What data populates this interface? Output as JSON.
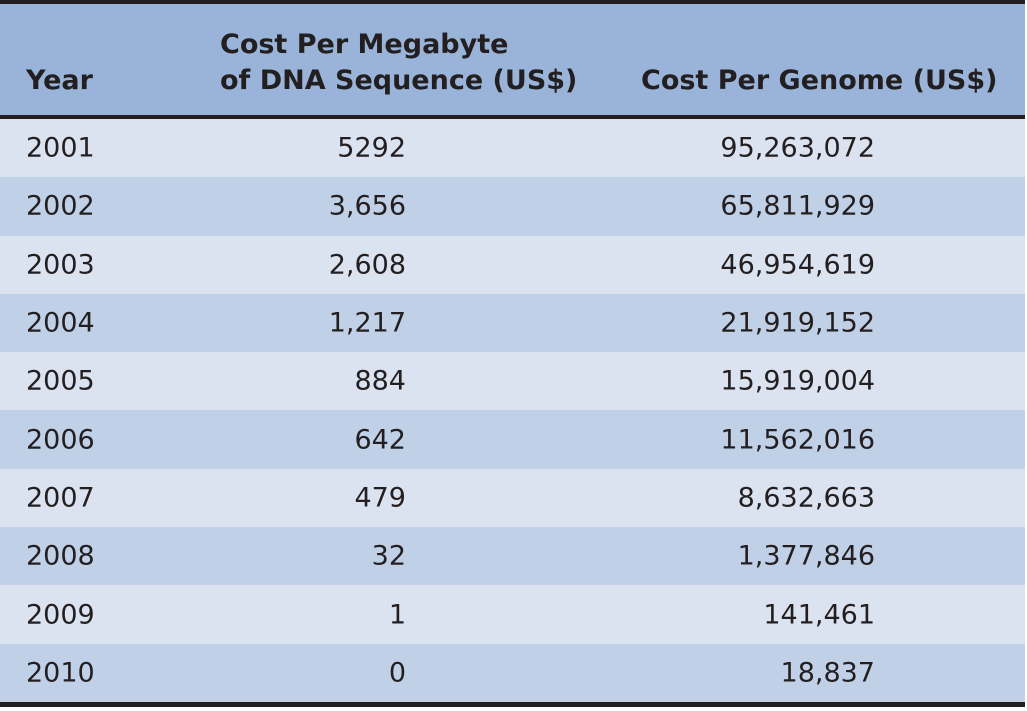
{
  "headers": {
    "year": "Year",
    "cost_mb_line1": "Cost Per Megabyte",
    "cost_mb_line2": "of DNA Sequence (US$)",
    "cost_genome": "Cost Per Genome (US$)"
  },
  "rows": [
    {
      "year": "2001",
      "cost_mb": "5292",
      "cost_genome": "95,263,072"
    },
    {
      "year": "2002",
      "cost_mb": "3,656",
      "cost_genome": "65,811,929"
    },
    {
      "year": "2003",
      "cost_mb": "2,608",
      "cost_genome": "46,954,619"
    },
    {
      "year": "2004",
      "cost_mb": "1,217",
      "cost_genome": "21,919,152"
    },
    {
      "year": "2005",
      "cost_mb": "884",
      "cost_genome": "15,919,004"
    },
    {
      "year": "2006",
      "cost_mb": "642",
      "cost_genome": "11,562,016"
    },
    {
      "year": "2007",
      "cost_mb": "479",
      "cost_genome": "8,632,663"
    },
    {
      "year": "2008",
      "cost_mb": "32",
      "cost_genome": "1,377,846"
    },
    {
      "year": "2009",
      "cost_mb": "1",
      "cost_genome": "141,461"
    },
    {
      "year": "2010",
      "cost_mb": "0",
      "cost_genome": "18,837"
    }
  ]
}
